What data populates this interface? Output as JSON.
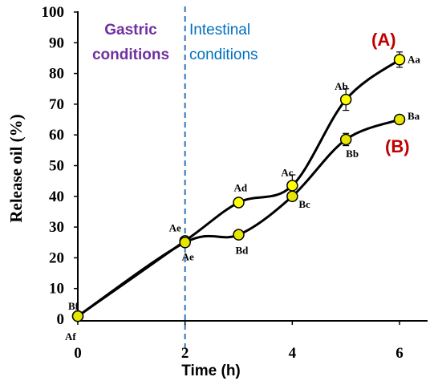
{
  "chart_data": {
    "type": "line",
    "xlabel": "Time (h)",
    "ylabel": "Release oil (%)",
    "xlim": [
      0,
      6
    ],
    "ylim": [
      0,
      100
    ],
    "xticks": [
      "0",
      "2",
      "4",
      "6"
    ],
    "yticks": [
      "0",
      "10",
      "20",
      "30",
      "40",
      "50",
      "60",
      "70",
      "80",
      "90",
      "100"
    ],
    "regions": [
      {
        "label_lines": [
          "Gastric",
          "conditions"
        ],
        "color": "#7030a0"
      },
      {
        "label_lines": [
          "Intestinal",
          "conditions"
        ],
        "color": "#0070c0"
      }
    ],
    "divider_x": 2,
    "divider_color": "#2e75b6",
    "series": [
      {
        "name": "(A)",
        "color": "#c00000",
        "marker_color": "#ffff00",
        "x": [
          0,
          2,
          3,
          4,
          5,
          6
        ],
        "y": [
          1,
          25.5,
          38,
          43.5,
          71.5,
          84.5
        ],
        "errors": [
          0,
          1,
          0,
          3.5,
          3.5,
          2.5
        ],
        "point_labels": [
          "Af",
          "Ae",
          "Ad",
          "Ac",
          "Ab",
          "Aa"
        ]
      },
      {
        "name": "(B)",
        "color": "#c00000",
        "marker_color": "#e6e600",
        "x": [
          0,
          2,
          3,
          4,
          5,
          6
        ],
        "y": [
          1,
          25,
          27.5,
          40,
          58.5,
          65
        ],
        "errors": [
          0,
          0,
          0,
          1,
          2,
          0
        ],
        "point_labels": [
          "Bf",
          "Ae",
          "Bd",
          "Bc",
          "Bb",
          "Ba"
        ]
      }
    ]
  }
}
